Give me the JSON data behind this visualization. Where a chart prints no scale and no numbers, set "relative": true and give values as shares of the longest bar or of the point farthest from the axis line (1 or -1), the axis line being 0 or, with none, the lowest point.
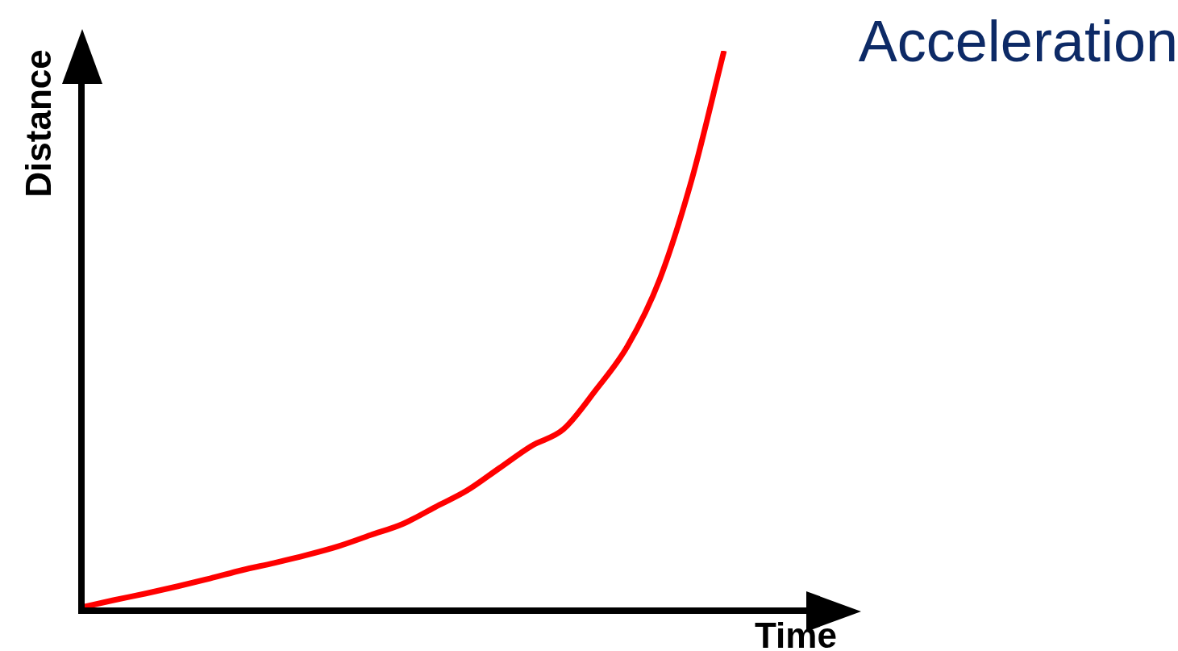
{
  "chart_data": {
    "type": "line",
    "title": "Acceleration",
    "xlabel": "Time",
    "ylabel": "Distance",
    "relative": true,
    "categories": [
      null,
      null,
      null,
      null,
      null,
      null,
      null,
      null,
      null,
      null,
      null,
      null,
      null,
      null,
      null,
      null,
      null,
      null,
      null,
      null,
      null
    ],
    "series": [
      {
        "color": "#ff0000",
        "values": [
          0,
          0.013,
          0.025,
          0.038,
          0.052,
          0.067,
          0.08,
          0.094,
          0.11,
          0.13,
          0.15,
          0.18,
          0.21,
          0.25,
          0.29,
          0.32,
          0.39,
          0.47,
          0.59,
          0.77,
          1
        ]
      }
    ]
  }
}
